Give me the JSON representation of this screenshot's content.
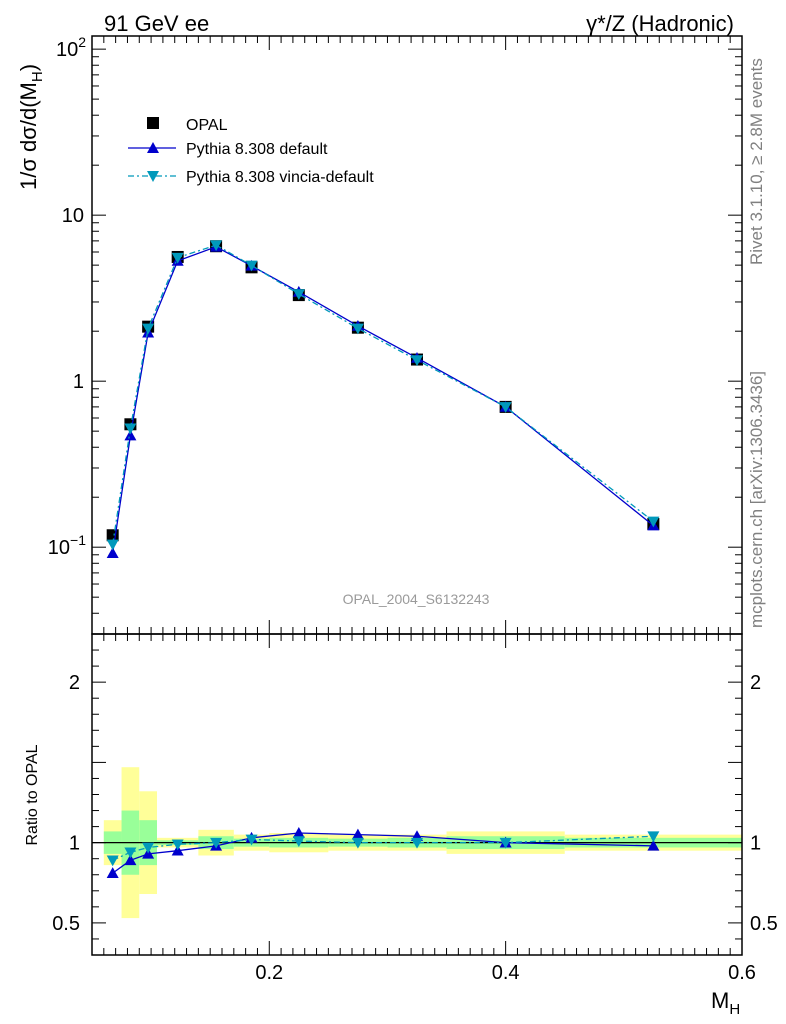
{
  "header": {
    "left": "91 GeV ee",
    "right": "γ*/Z (Hadronic)"
  },
  "side_labels": {
    "top": "Rivet 3.1.10, ≥ 2.8M events",
    "bottom": "mcplots.cern.ch [arXiv:1306.3436]"
  },
  "watermark": "OPAL_2004_S6132243",
  "colors": {
    "data": "#000000",
    "pythia_default": "#0000cc",
    "vincia": "#0099bb",
    "band_inner": "#99ff99",
    "band_outer": "#ffff99"
  },
  "chart_data": [
    {
      "type": "scatter",
      "panel": "main",
      "ylabel_main": "1/σ dσ/d(M",
      "ylabel_sub": "H",
      "ylabel_close": ")",
      "yscale": "log",
      "xlim": [
        0.05,
        0.6
      ],
      "ylim": [
        0.03,
        120
      ],
      "y_ticks": [
        {
          "v": 100,
          "label": "10",
          "exp": "2"
        },
        {
          "v": 10,
          "label": "10",
          "exp": ""
        },
        {
          "v": 1,
          "label": "1",
          "exp": ""
        },
        {
          "v": 0.1,
          "label": "10",
          "exp": "−1"
        }
      ],
      "legend_placement": "top-left",
      "legend": [
        "OPAL",
        "Pythia 8.308 default",
        "Pythia 8.308 vincia-default"
      ],
      "x": [
        0.0675,
        0.0825,
        0.0975,
        0.1225,
        0.155,
        0.185,
        0.225,
        0.275,
        0.325,
        0.4,
        0.525
      ],
      "series": [
        {
          "name": "OPAL",
          "values": [
            0.118,
            0.55,
            2.13,
            5.6,
            6.5,
            4.85,
            3.3,
            2.1,
            1.35,
            0.7,
            0.138
          ]
        },
        {
          "name": "Pythia 8.308 default",
          "values": [
            0.092,
            0.47,
            1.96,
            5.3,
            6.45,
            4.95,
            3.45,
            2.15,
            1.38,
            0.7,
            0.135
          ]
        },
        {
          "name": "Pythia 8.308 vincia-default",
          "values": [
            0.104,
            0.52,
            2.08,
            5.55,
            6.6,
            4.98,
            3.35,
            2.08,
            1.34,
            0.7,
            0.143
          ]
        }
      ]
    },
    {
      "type": "scatter",
      "panel": "ratio",
      "ylabel": "Ratio to OPAL",
      "xlabel_main": "M",
      "xlabel_sub": "H",
      "ylim": [
        0.3,
        2.3
      ],
      "y_ticks": [
        {
          "v": 2,
          "label": "2"
        },
        {
          "v": 1,
          "label": "1"
        },
        {
          "v": 0.5,
          "label": "0.5"
        }
      ],
      "x_ticks": [
        {
          "v": 0.2,
          "label": "0.2"
        },
        {
          "v": 0.4,
          "label": "0.4"
        },
        {
          "v": 0.6,
          "label": "0.6"
        }
      ],
      "bins": [
        {
          "lo": 0.06,
          "hi": 0.075,
          "inner": [
            0.93,
            1.07
          ],
          "outer": [
            0.86,
            1.14
          ]
        },
        {
          "lo": 0.075,
          "hi": 0.09,
          "inner": [
            0.8,
            1.2
          ],
          "outer": [
            0.53,
            1.47
          ]
        },
        {
          "lo": 0.09,
          "hi": 0.105,
          "inner": [
            0.86,
            1.14
          ],
          "outer": [
            0.68,
            1.32
          ]
        },
        {
          "lo": 0.105,
          "hi": 0.14,
          "inner": [
            0.985,
            1.015
          ],
          "outer": [
            0.97,
            1.03
          ]
        },
        {
          "lo": 0.14,
          "hi": 0.17,
          "inner": [
            0.96,
            1.04
          ],
          "outer": [
            0.92,
            1.08
          ]
        },
        {
          "lo": 0.17,
          "hi": 0.2,
          "inner": [
            0.975,
            1.025
          ],
          "outer": [
            0.95,
            1.05
          ]
        },
        {
          "lo": 0.2,
          "hi": 0.25,
          "inner": [
            0.97,
            1.03
          ],
          "outer": [
            0.94,
            1.06
          ]
        },
        {
          "lo": 0.25,
          "hi": 0.3,
          "inner": [
            0.975,
            1.025
          ],
          "outer": [
            0.95,
            1.05
          ]
        },
        {
          "lo": 0.3,
          "hi": 0.35,
          "inner": [
            0.97,
            1.03
          ],
          "outer": [
            0.95,
            1.05
          ]
        },
        {
          "lo": 0.35,
          "hi": 0.45,
          "inner": [
            0.96,
            1.04
          ],
          "outer": [
            0.93,
            1.07
          ]
        },
        {
          "lo": 0.45,
          "hi": 0.6,
          "inner": [
            0.97,
            1.03
          ],
          "outer": [
            0.95,
            1.05
          ]
        }
      ],
      "x": [
        0.0675,
        0.0825,
        0.0975,
        0.1225,
        0.155,
        0.185,
        0.225,
        0.275,
        0.325,
        0.4,
        0.525
      ],
      "series": [
        {
          "name": "Pythia 8.308 default",
          "values": [
            0.81,
            0.89,
            0.93,
            0.95,
            0.98,
            1.03,
            1.06,
            1.05,
            1.04,
            1.0,
            0.98
          ]
        },
        {
          "name": "Pythia 8.308 vincia-default",
          "values": [
            0.89,
            0.94,
            0.97,
            0.99,
            1.0,
            1.02,
            1.01,
            1.0,
            1.0,
            1.0,
            1.04
          ]
        }
      ]
    }
  ]
}
